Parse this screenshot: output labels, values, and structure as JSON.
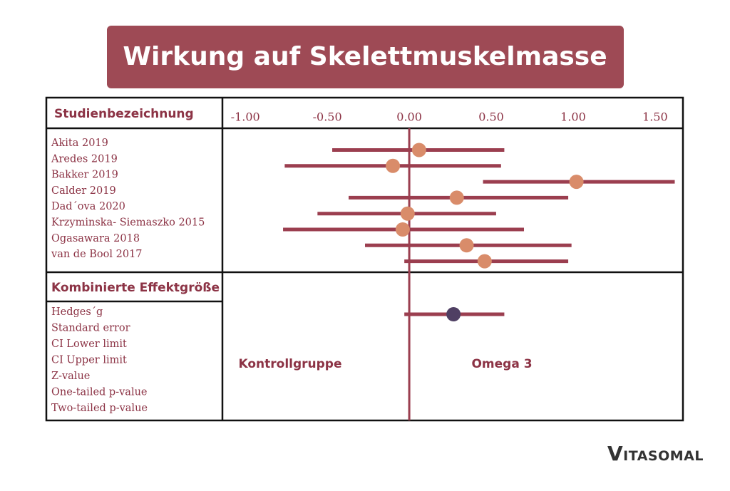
{
  "chart_data": {
    "type": "forest",
    "title": "Wirkung auf Skelettmuskelmasse",
    "column_header": "Studienbezeichnung",
    "categories": [
      "Akita 2019",
      "Aredes 2019",
      "Bakker 2019",
      "Calder 2019",
      "Dad´ova 2020",
      "Krzyminska- Siemaszko 2015",
      "Ogasawara 2018",
      "van de Bool 2017"
    ],
    "values": [
      0.06,
      -0.1,
      1.02,
      0.29,
      -0.01,
      -0.04,
      0.35,
      0.46
    ],
    "lower": [
      -0.47,
      -0.76,
      0.45,
      -0.37,
      -0.56,
      -0.77,
      -0.27,
      -0.03
    ],
    "upper": [
      0.58,
      0.56,
      1.62,
      0.97,
      0.53,
      0.7,
      0.99,
      0.97
    ],
    "combined_header": "Kombinierte Effektgröße",
    "combined_labels": [
      "Hedges´g",
      "Standard error",
      "CI Lower limit",
      "CI Upper limit",
      "Z-value",
      "One-tailed p-value",
      "Two-tailed p-value"
    ],
    "combined": {
      "value": 0.27,
      "lower": -0.03,
      "upper": 0.58,
      "color": "#4f3f63"
    },
    "color": "#9b3e4f",
    "marker_color": "#d98c6a",
    "xlim": [
      -1.14,
      1.67
    ],
    "xticks": [
      {
        "value": -1,
        "label": "-1.00"
      },
      {
        "value": -0.5,
        "label": "-0.50"
      },
      {
        "value": 0,
        "label": "0.00"
      },
      {
        "value": 0.5,
        "label": "0.50"
      },
      {
        "value": 1,
        "label": "1.00"
      },
      {
        "value": 1.5,
        "label": "1.50"
      }
    ],
    "annotations": [
      "Kontrollgruppe",
      "Omega 3"
    ]
  },
  "brand": "VITASOMAL"
}
